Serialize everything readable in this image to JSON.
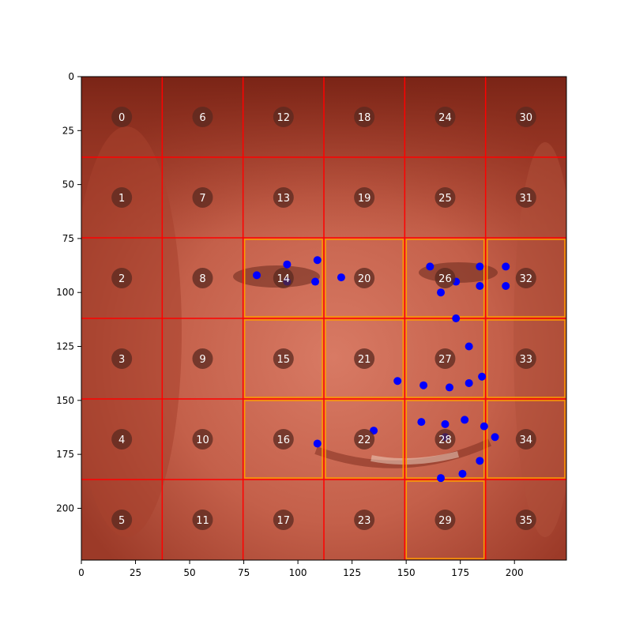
{
  "x_ticks": [
    "0",
    "25",
    "50",
    "75",
    "100",
    "125",
    "150",
    "175",
    "200"
  ],
  "y_ticks": [
    "0",
    "25",
    "50",
    "75",
    "100",
    "125",
    "150",
    "175",
    "200"
  ],
  "x_tick_values": [
    0,
    25,
    50,
    75,
    100,
    125,
    150,
    175,
    200
  ],
  "y_tick_values": [
    0,
    25,
    50,
    75,
    100,
    125,
    150,
    175,
    200
  ],
  "image_extent": [
    0,
    224
  ],
  "grid": {
    "rows": 6,
    "cols": 6,
    "cell_size": 37.33,
    "line_color": "#ff0000",
    "highlight_color": "#ff9900",
    "highlighted_cells": [
      14,
      20,
      26,
      32,
      15,
      21,
      27,
      33,
      16,
      22,
      28,
      34,
      29
    ]
  },
  "cell_labels": [
    {
      "id": 0,
      "label": "0"
    },
    {
      "id": 1,
      "label": "1"
    },
    {
      "id": 2,
      "label": "2"
    },
    {
      "id": 3,
      "label": "3"
    },
    {
      "id": 4,
      "label": "4"
    },
    {
      "id": 5,
      "label": "5"
    },
    {
      "id": 6,
      "label": "6"
    },
    {
      "id": 7,
      "label": "7"
    },
    {
      "id": 8,
      "label": "8"
    },
    {
      "id": 9,
      "label": "9"
    },
    {
      "id": 10,
      "label": "10"
    },
    {
      "id": 11,
      "label": "11"
    },
    {
      "id": 12,
      "label": "12"
    },
    {
      "id": 13,
      "label": "13"
    },
    {
      "id": 14,
      "label": "14"
    },
    {
      "id": 15,
      "label": "15"
    },
    {
      "id": 16,
      "label": "16"
    },
    {
      "id": 17,
      "label": "17"
    },
    {
      "id": 18,
      "label": "18"
    },
    {
      "id": 19,
      "label": "19"
    },
    {
      "id": 20,
      "label": "20"
    },
    {
      "id": 21,
      "label": "21"
    },
    {
      "id": 22,
      "label": "22"
    },
    {
      "id": 23,
      "label": "23"
    },
    {
      "id": 24,
      "label": "24"
    },
    {
      "id": 25,
      "label": "25"
    },
    {
      "id": 26,
      "label": "26"
    },
    {
      "id": 27,
      "label": "27"
    },
    {
      "id": 28,
      "label": "28"
    },
    {
      "id": 29,
      "label": "29"
    },
    {
      "id": 30,
      "label": "30"
    },
    {
      "id": 31,
      "label": "31"
    },
    {
      "id": 32,
      "label": "32"
    },
    {
      "id": 33,
      "label": "33"
    },
    {
      "id": 34,
      "label": "34"
    },
    {
      "id": 35,
      "label": "35"
    }
  ],
  "landmarks": {
    "color": "#0000ff",
    "points": [
      [
        81,
        92
      ],
      [
        95,
        87
      ],
      [
        95,
        95
      ],
      [
        109,
        85
      ],
      [
        108,
        95
      ],
      [
        120,
        93
      ],
      [
        161,
        88
      ],
      [
        166,
        100
      ],
      [
        173,
        95
      ],
      [
        184,
        88
      ],
      [
        184,
        97
      ],
      [
        196,
        88
      ],
      [
        196,
        97
      ],
      [
        173,
        112
      ],
      [
        179,
        125
      ],
      [
        146,
        141
      ],
      [
        158,
        143
      ],
      [
        170,
        144
      ],
      [
        179,
        142
      ],
      [
        185,
        139
      ],
      [
        135,
        164
      ],
      [
        109,
        170
      ],
      [
        157,
        160
      ],
      [
        168,
        161
      ],
      [
        177,
        159
      ],
      [
        186,
        162
      ],
      [
        191,
        167
      ],
      [
        168,
        167
      ],
      [
        184,
        178
      ],
      [
        176,
        184
      ],
      [
        166,
        186
      ]
    ]
  },
  "colors": {
    "face_base": "#c4604a",
    "hair_dark": "#8c2d1c",
    "label_circle": "#5a2a20",
    "label_text": "#ffffff",
    "axis": "#000000"
  }
}
